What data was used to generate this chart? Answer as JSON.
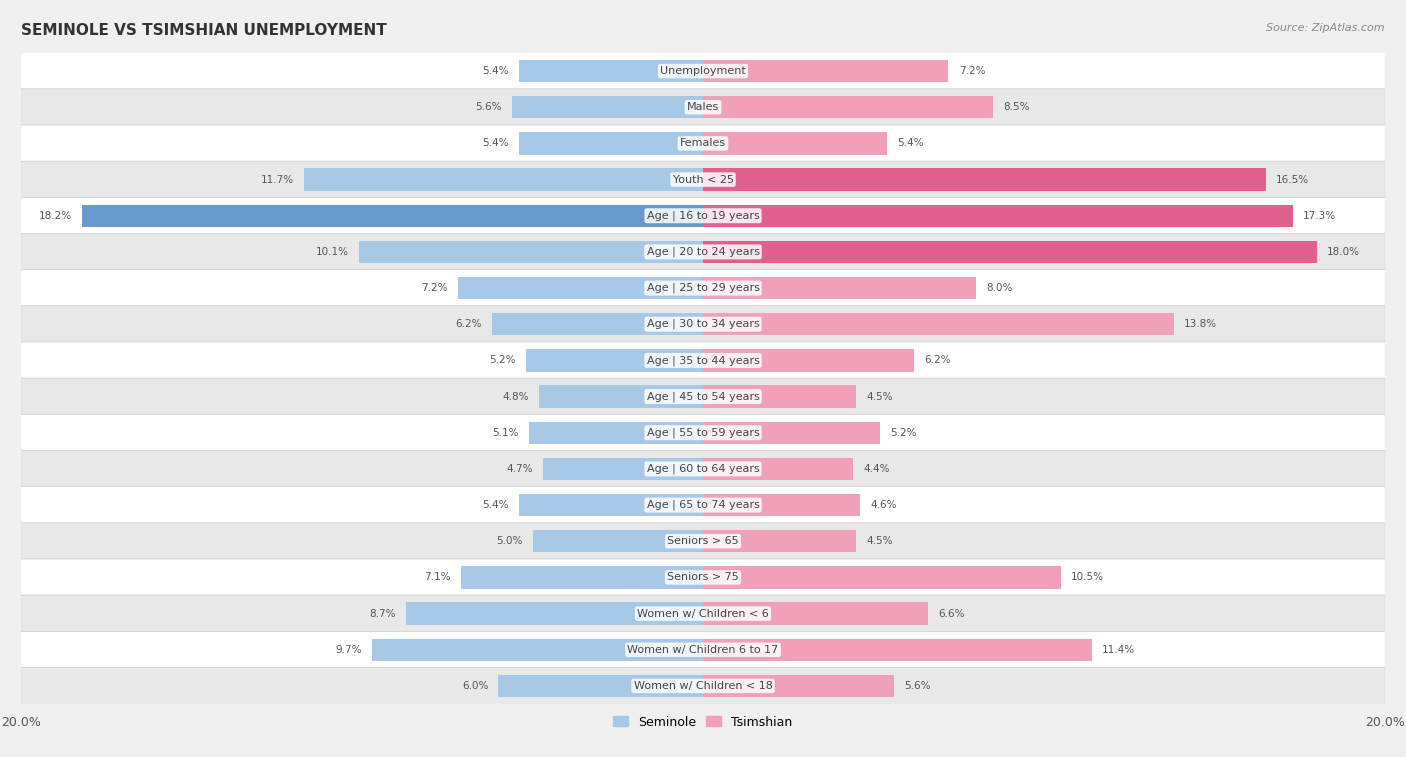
{
  "title": "Seminole vs Tsimshian Unemployment",
  "source": "Source: ZipAtlas.com",
  "categories": [
    "Unemployment",
    "Males",
    "Females",
    "Youth < 25",
    "Age | 16 to 19 years",
    "Age | 20 to 24 years",
    "Age | 25 to 29 years",
    "Age | 30 to 34 years",
    "Age | 35 to 44 years",
    "Age | 45 to 54 years",
    "Age | 55 to 59 years",
    "Age | 60 to 64 years",
    "Age | 65 to 74 years",
    "Seniors > 65",
    "Seniors > 75",
    "Women w/ Children < 6",
    "Women w/ Children 6 to 17",
    "Women w/ Children < 18"
  ],
  "seminole": [
    5.4,
    5.6,
    5.4,
    11.7,
    18.2,
    10.1,
    7.2,
    6.2,
    5.2,
    4.8,
    5.1,
    4.7,
    5.4,
    5.0,
    7.1,
    8.7,
    9.7,
    6.0
  ],
  "tsimshian": [
    7.2,
    8.5,
    5.4,
    16.5,
    17.3,
    18.0,
    8.0,
    13.8,
    6.2,
    4.5,
    5.2,
    4.4,
    4.6,
    4.5,
    10.5,
    6.6,
    11.4,
    5.6
  ],
  "seminole_color": "#a8c8e8",
  "tsimshian_color": "#f0a0b8",
  "seminole_color_highlight": "#6699cc",
  "tsimshian_color_highlight": "#e06090",
  "xlim": 20.0,
  "bg_color": "#f0f0f0",
  "row_bg_light": "#ffffff",
  "row_bg_dark": "#e8e8e8"
}
